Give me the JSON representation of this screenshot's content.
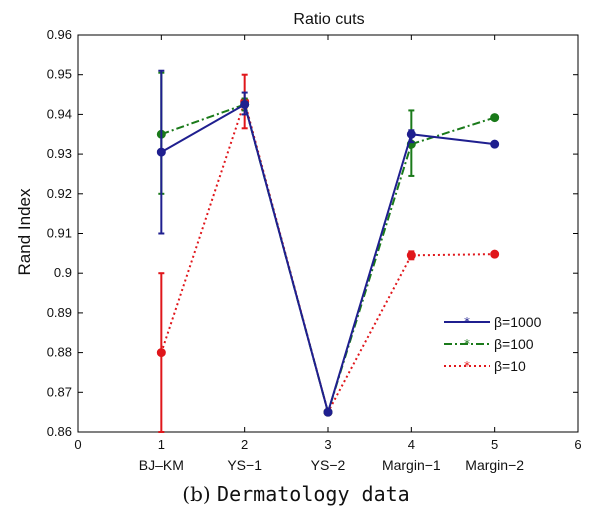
{
  "chart_data": {
    "type": "line",
    "title": "Ratio cuts",
    "ylabel": "Rand Index",
    "xlim": [
      0,
      6
    ],
    "ylim": [
      0.86,
      0.96
    ],
    "x_ticks": [
      "0",
      "1",
      "2",
      "3",
      "4",
      "5",
      "6"
    ],
    "y_ticks": [
      "0.86",
      "0.87",
      "0.88",
      "0.89",
      "0.9",
      "0.91",
      "0.92",
      "0.93",
      "0.94",
      "0.95",
      "0.96"
    ],
    "categories": [
      "BJ–KM",
      "YS−1",
      "YS−2",
      "Margin−1",
      "Margin−2"
    ],
    "category_x": [
      1,
      2,
      3,
      4,
      5
    ],
    "legend_position": "right",
    "series": [
      {
        "name": "β=1000",
        "color": "#1f1f8f",
        "style": "solid",
        "values": [
          0.9305,
          0.9425,
          0.865,
          0.935,
          0.9325
        ],
        "err_low": [
          0.91,
          0.94,
          null,
          0.933,
          null
        ],
        "err_high": [
          0.951,
          0.9455,
          null,
          0.936,
          null
        ]
      },
      {
        "name": "β=100",
        "color": "#1a7a1a",
        "style": "dashdot",
        "values": [
          0.935,
          0.9425,
          0.865,
          0.9325,
          0.9392
        ],
        "err_low": [
          0.92,
          0.941,
          null,
          0.9245,
          null
        ],
        "err_high": [
          0.9505,
          0.944,
          null,
          0.941,
          null
        ]
      },
      {
        "name": "β=10",
        "color": "#e0161b",
        "style": "dotted",
        "values": [
          0.88,
          0.9432,
          0.865,
          0.9045,
          0.9048
        ],
        "err_low": [
          0.86,
          0.9365,
          null,
          0.9035,
          null
        ],
        "err_high": [
          0.9,
          0.95,
          null,
          0.9055,
          null
        ]
      }
    ]
  },
  "caption": {
    "prefix": "(b) ",
    "text": "Dermatology data"
  }
}
